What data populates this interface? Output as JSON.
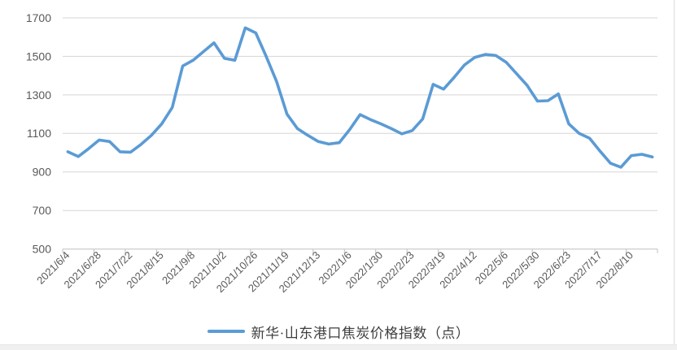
{
  "chart_data": {
    "type": "line",
    "title": "",
    "legend": "新华·山东港口焦炭价格指数（点）",
    "legend_position": "bottom",
    "grid": true,
    "x_labels": [
      "2021/6/4",
      "2021/6/28",
      "2021/7/22",
      "2021/8/15",
      "2021/9/8",
      "2021/10/2",
      "2021/10/26",
      "2021/11/19",
      "2021/12/13",
      "2022/1/6",
      "2022/1/30",
      "2022/2/23",
      "2022/3/19",
      "2022/4/12",
      "2022/5/6",
      "2022/5/30",
      "2022/6/23",
      "2022/7/17",
      "2022/8/10"
    ],
    "points_per_label": 3,
    "values": [
      1005,
      980,
      1022,
      1066,
      1058,
      1005,
      1003,
      1043,
      1090,
      1150,
      1235,
      1450,
      1480,
      1525,
      1570,
      1490,
      1480,
      1648,
      1622,
      1500,
      1370,
      1200,
      1125,
      1090,
      1058,
      1045,
      1052,
      1120,
      1198,
      1172,
      1150,
      1125,
      1098,
      1115,
      1175,
      1355,
      1330,
      1390,
      1455,
      1495,
      1510,
      1505,
      1470,
      1410,
      1350,
      1268,
      1270,
      1305,
      1150,
      1100,
      1075,
      1008,
      945,
      925,
      985,
      992,
      978
    ],
    "y_axis": {
      "min": 500,
      "max": 1700,
      "step": 200
    },
    "series_color": "#5B9BD5",
    "gridline_color": "#D6D6D6",
    "axis_color": "#BFBFBF",
    "label_color": "#595959",
    "legend_text_color": "#3F3F3F"
  }
}
